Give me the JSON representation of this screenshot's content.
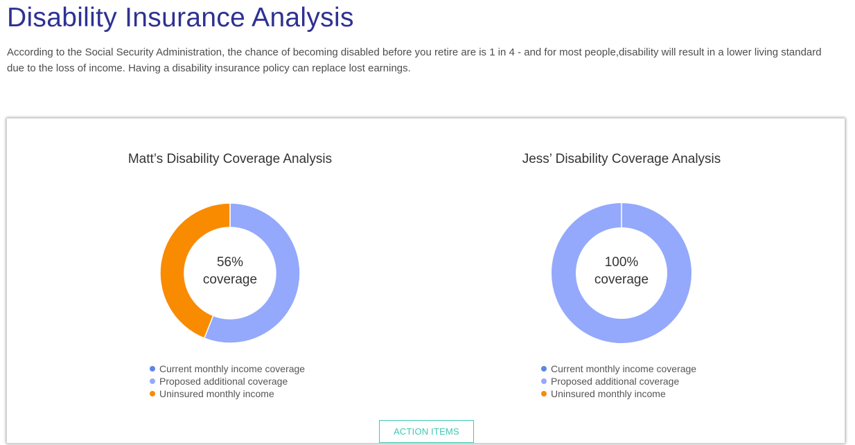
{
  "header": {
    "title": "Disability Insurance Analysis",
    "intro": "According to the Social Security Administration, the chance of becoming disabled before you retire are is 1 in 4 - and for most people,disability will result in a lower living standard due to the loss of income. Having a disability insurance policy can replace lost earnings."
  },
  "colors": {
    "current": "#5b86e5",
    "proposed": "#94a9fb",
    "uninsured": "#f98b00"
  },
  "legend": {
    "current": "Current monthly income coverage",
    "proposed": "Proposed additional coverage",
    "uninsured": "Uninsured monthly income"
  },
  "chart_data": [
    {
      "type": "pie",
      "title": "Matt’s Disability Coverage Analysis",
      "center_value": "56%",
      "center_label": "coverage",
      "categories": [
        "Current monthly income coverage",
        "Proposed additional coverage",
        "Uninsured monthly income"
      ],
      "values": [
        0,
        56,
        44
      ]
    },
    {
      "type": "pie",
      "title": "Jess’ Disability Coverage Analysis",
      "center_value": "100%",
      "center_label": "coverage",
      "categories": [
        "Current monthly income coverage",
        "Proposed additional coverage",
        "Uninsured monthly income"
      ],
      "values": [
        0,
        100,
        0
      ]
    }
  ],
  "actions": {
    "action_items_label": "ACTION ITEMS"
  }
}
